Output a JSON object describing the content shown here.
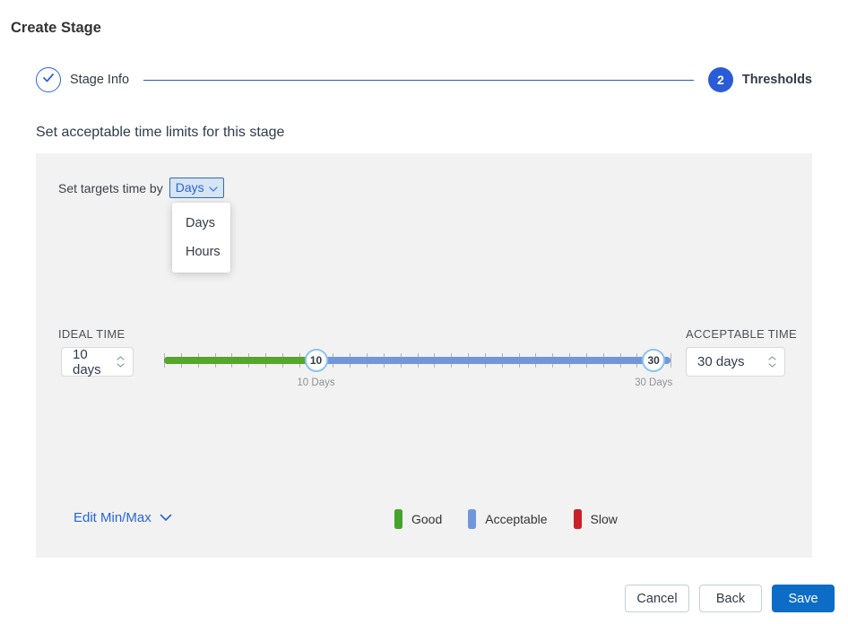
{
  "page": {
    "title": "Create Stage"
  },
  "stepper": {
    "steps": [
      {
        "label": "Stage Info",
        "state": "complete"
      },
      {
        "label": "Thresholds",
        "state": "active",
        "number": "2"
      }
    ]
  },
  "section": {
    "heading": "Set acceptable time limits for this stage"
  },
  "panel": {
    "target_time_label": "Set targets time by",
    "unit_dropdown": {
      "value": "Days",
      "open": true,
      "options": [
        "Days",
        "Hours"
      ]
    },
    "ideal": {
      "label": "IDEAL TIME",
      "value": "10 days"
    },
    "acceptable": {
      "label": "ACCEPTABLE TIME",
      "value": "30 days"
    },
    "slider": {
      "min": 1,
      "max": 31,
      "tick_interval": 1,
      "ideal_value": 10,
      "acceptable_value": 30,
      "ideal_label": "10 Days",
      "acceptable_label": "30 Days",
      "good_color": "#55a72a",
      "acceptable_color": "#7197da"
    },
    "edit_minmax_label": "Edit Min/Max",
    "legend": [
      {
        "label": "Good",
        "color": "#45a32c"
      },
      {
        "label": "Acceptable",
        "color": "#7197da"
      },
      {
        "label": "Slow",
        "color": "#c9202a"
      }
    ]
  },
  "footer": {
    "cancel_label": "Cancel",
    "back_label": "Back",
    "save_label": "Save"
  },
  "colors": {
    "accent_blue": "#2a5cd7",
    "save_blue": "#0d6cc6",
    "panel_gray": "#f2f2f2"
  }
}
